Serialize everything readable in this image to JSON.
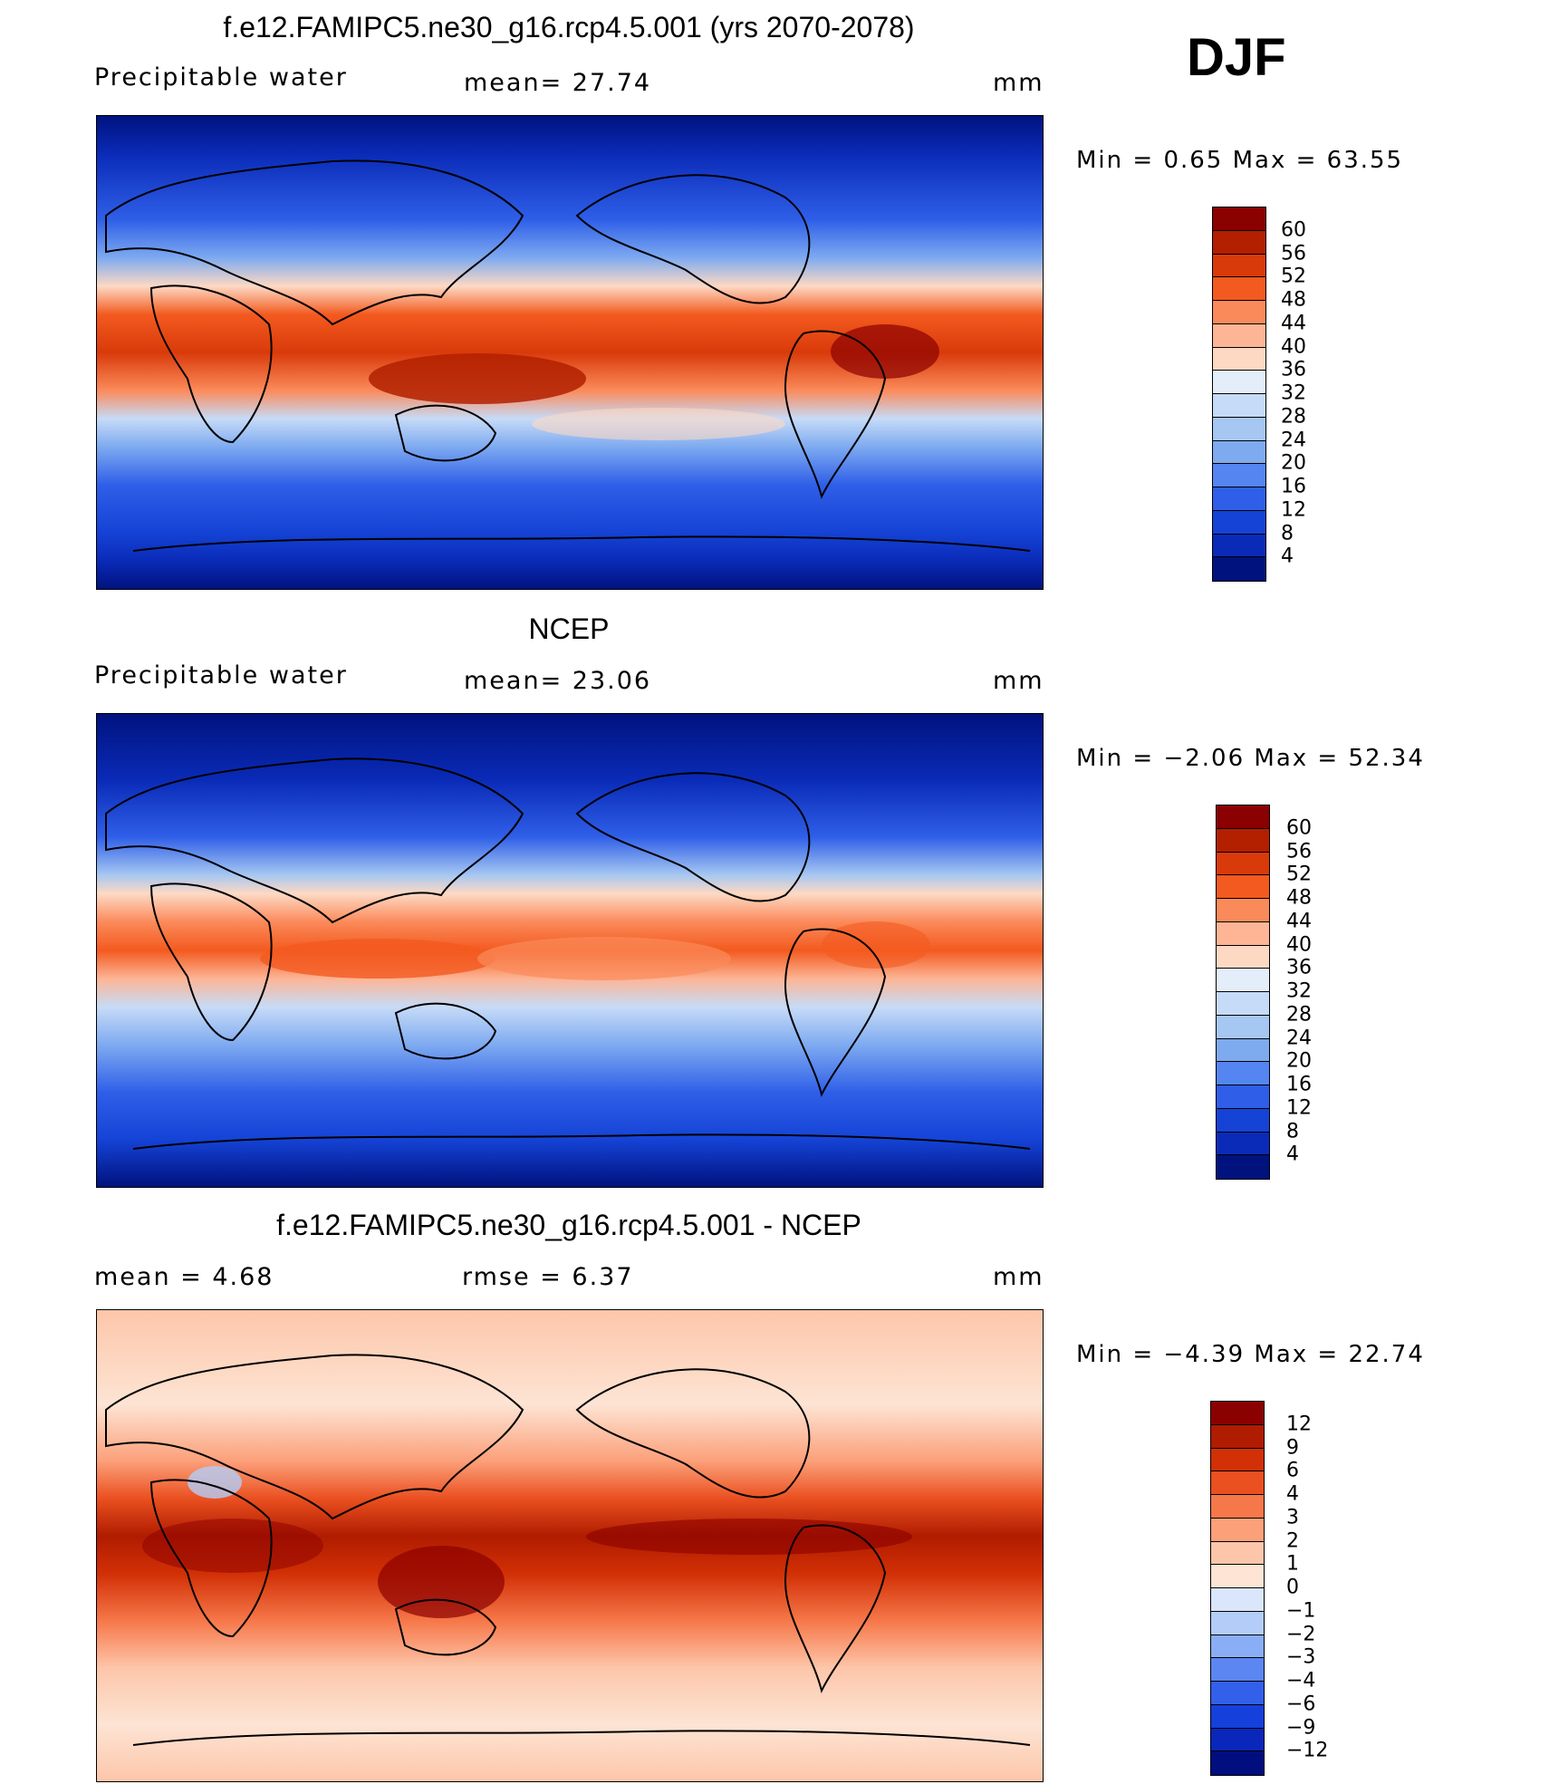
{
  "season": "DJF",
  "panels": [
    {
      "title": "f.e12.FAMIPC5.ne30_g16.rcp4.5.001 (yrs 2070-2078)",
      "left_text": "Precipitable  water",
      "center_text": "mean=   27.74",
      "units": "mm",
      "minmax": "Min  =     0.65  Max  =    63.55",
      "colorbar": {
        "colors": [
          "#8b0000",
          "#b22000",
          "#d93a0a",
          "#f35a1f",
          "#fb8a5a",
          "#fdb596",
          "#fdd9c4",
          "#e4eefb",
          "#c6dbf7",
          "#a6c7f2",
          "#7eaaf0",
          "#5585f0",
          "#2f5fe8",
          "#1543d6",
          "#0a2bb8",
          "#00127e"
        ],
        "labels": [
          "60",
          "56",
          "52",
          "48",
          "44",
          "40",
          "36",
          "32",
          "28",
          "24",
          "20",
          "16",
          "12",
          "8",
          "4"
        ]
      }
    },
    {
      "title": "NCEP",
      "left_text": "Precipitable  water",
      "center_text": "mean=   23.06",
      "units": "mm",
      "minmax": "Min  =   −2.06  Max  =    52.34",
      "colorbar": {
        "colors": [
          "#8b0000",
          "#b22000",
          "#d93a0a",
          "#f35a1f",
          "#fb8a5a",
          "#fdb596",
          "#fdd9c4",
          "#e4eefb",
          "#c6dbf7",
          "#a6c7f2",
          "#7eaaf0",
          "#5585f0",
          "#2f5fe8",
          "#1543d6",
          "#0a2bb8",
          "#00127e"
        ],
        "labels": [
          "60",
          "56",
          "52",
          "48",
          "44",
          "40",
          "36",
          "32",
          "28",
          "24",
          "20",
          "16",
          "12",
          "8",
          "4"
        ]
      }
    },
    {
      "title": "f.e12.FAMIPC5.ne30_g16.rcp4.5.001 - NCEP",
      "left_text": "mean  =     4.68",
      "center_text": "rmse  =     6.37",
      "units": "mm",
      "minmax": "Min  =   −4.39  Max  =    22.74",
      "colorbar": {
        "colors": [
          "#8b0000",
          "#b01c00",
          "#d23006",
          "#ea5020",
          "#f6784a",
          "#fca07a",
          "#fdc6aa",
          "#fde4d4",
          "#d9e6fb",
          "#b4cdf8",
          "#8aaef6",
          "#5c86f2",
          "#3360ea",
          "#1540dc",
          "#0a27bb",
          "#000e80"
        ],
        "labels": [
          "12",
          "9",
          "6",
          "4",
          "3",
          "2",
          "1",
          "0",
          "−1",
          "−2",
          "−3",
          "−4",
          "−6",
          "−9",
          "−12"
        ]
      }
    }
  ]
}
